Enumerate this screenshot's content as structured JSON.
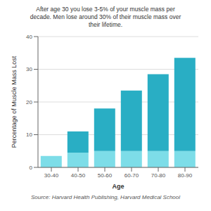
{
  "chart_data": {
    "type": "bar",
    "title": "After age 30 you lose 3-5% of your muscle mass per\ndecade. Men lose around 30% of their muscle mass over\ntheir lifetime.",
    "xlabel": "Age",
    "ylabel": "Percentage of Muscle Mass Lost",
    "categories": [
      "30-40",
      "40-50",
      "50-60",
      "60-70",
      "70-80",
      "80-90"
    ],
    "series": [
      {
        "color": "#7ddde8",
        "values": [
          3.5,
          4.5,
          5.0,
          5.0,
          5.0,
          5.0
        ]
      },
      {
        "color": "#29aec4",
        "values": [
          0.0,
          6.5,
          13.0,
          18.5,
          23.5,
          28.5
        ]
      }
    ],
    "stacked": true,
    "ylim": [
      0,
      40
    ],
    "yticks": [
      0,
      10,
      20,
      30,
      40
    ],
    "grid": true,
    "annotations": [
      "Source: Harvard Health Publishing, Harvard Medical School"
    ]
  }
}
